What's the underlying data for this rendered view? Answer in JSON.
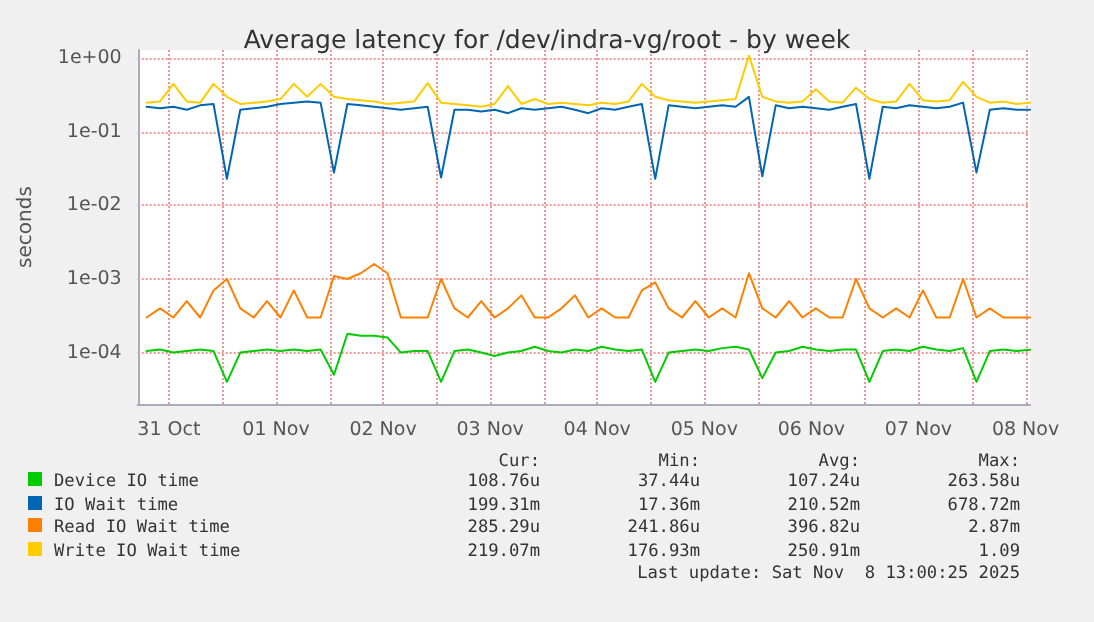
{
  "chart_data": {
    "type": "line",
    "title": "Average latency for /dev/indra-vg/root - by week",
    "ylabel": "seconds",
    "log": "y",
    "grid": true,
    "legend": "bottom",
    "marker": "none",
    "line_style": "solid",
    "xlim": [
      "2025-10-31T05:00",
      "2025-11-08T13:00"
    ],
    "xticks": [
      {
        "value": "2025-10-31T12:00",
        "label": "31 Oct"
      },
      {
        "value": "2025-11-01T00:00",
        "label": null
      },
      {
        "value": "2025-11-01T12:00",
        "label": "01 Nov"
      },
      {
        "value": "2025-11-02T00:00",
        "label": null
      },
      {
        "value": "2025-11-02T12:00",
        "label": "02 Nov"
      },
      {
        "value": "2025-11-03T00:00",
        "label": null
      },
      {
        "value": "2025-11-03T12:00",
        "label": "03 Nov"
      },
      {
        "value": "2025-11-04T00:00",
        "label": null
      },
      {
        "value": "2025-11-04T12:00",
        "label": "04 Nov"
      },
      {
        "value": "2025-11-05T00:00",
        "label": null
      },
      {
        "value": "2025-11-05T12:00",
        "label": "05 Nov"
      },
      {
        "value": "2025-11-06T00:00",
        "label": null
      },
      {
        "value": "2025-11-06T12:00",
        "label": "06 Nov"
      },
      {
        "value": "2025-11-07T00:00",
        "label": null
      },
      {
        "value": "2025-11-07T12:00",
        "label": "07 Nov"
      },
      {
        "value": "2025-11-08T00:00",
        "label": null
      },
      {
        "value": "2025-11-08T12:00",
        "label": "08 Nov"
      }
    ],
    "ylim": [
      2e-05,
      1.3
    ],
    "yticks": [
      {
        "value": 1,
        "label": "1e+00"
      },
      {
        "value": 0.1,
        "label": "1e-01"
      },
      {
        "value": 0.01,
        "label": "1e-02"
      },
      {
        "value": 0.001,
        "label": "1e-03"
      },
      {
        "value": 0.0001,
        "label": "1e-04"
      }
    ],
    "x": [
      "2025-10-31T07:00",
      "2025-10-31T10:00",
      "2025-10-31T13:00",
      "2025-10-31T16:00",
      "2025-10-31T19:00",
      "2025-10-31T22:00",
      "2025-11-01T01:00",
      "2025-11-01T04:00",
      "2025-11-01T07:00",
      "2025-11-01T10:00",
      "2025-11-01T13:00",
      "2025-11-01T16:00",
      "2025-11-01T19:00",
      "2025-11-01T22:00",
      "2025-11-02T01:00",
      "2025-11-02T04:00",
      "2025-11-02T07:00",
      "2025-11-02T10:00",
      "2025-11-02T13:00",
      "2025-11-02T16:00",
      "2025-11-02T19:00",
      "2025-11-02T22:00",
      "2025-11-03T01:00",
      "2025-11-03T04:00",
      "2025-11-03T07:00",
      "2025-11-03T10:00",
      "2025-11-03T13:00",
      "2025-11-03T16:00",
      "2025-11-03T19:00",
      "2025-11-03T22:00",
      "2025-11-04T01:00",
      "2025-11-04T04:00",
      "2025-11-04T07:00",
      "2025-11-04T10:00",
      "2025-11-04T13:00",
      "2025-11-04T16:00",
      "2025-11-04T19:00",
      "2025-11-04T22:00",
      "2025-11-05T01:00",
      "2025-11-05T04:00",
      "2025-11-05T07:00",
      "2025-11-05T10:00",
      "2025-11-05T13:00",
      "2025-11-05T16:00",
      "2025-11-05T19:00",
      "2025-11-05T22:00",
      "2025-11-06T01:00",
      "2025-11-06T04:00",
      "2025-11-06T07:00",
      "2025-11-06T10:00",
      "2025-11-06T13:00",
      "2025-11-06T16:00",
      "2025-11-06T19:00",
      "2025-11-06T22:00",
      "2025-11-07T01:00",
      "2025-11-07T04:00",
      "2025-11-07T07:00",
      "2025-11-07T10:00",
      "2025-11-07T13:00",
      "2025-11-07T16:00",
      "2025-11-07T19:00",
      "2025-11-07T22:00",
      "2025-11-08T01:00",
      "2025-11-08T04:00",
      "2025-11-08T07:00",
      "2025-11-08T10:00",
      "2025-11-08T13:00"
    ],
    "series": [
      {
        "name": "Device IO time",
        "color": "#00cc00",
        "values": [
          0.000105,
          0.00011,
          0.0001,
          0.000105,
          0.00011,
          0.000105,
          4e-05,
          0.0001,
          0.000105,
          0.00011,
          0.000105,
          0.00011,
          0.000105,
          0.00011,
          5e-05,
          0.00018,
          0.00017,
          0.00017,
          0.00016,
          0.0001,
          0.000105,
          0.000105,
          4e-05,
          0.000105,
          0.00011,
          0.0001,
          9e-05,
          0.0001,
          0.000105,
          0.00012,
          0.000105,
          0.0001,
          0.00011,
          0.000105,
          0.00012,
          0.00011,
          0.000105,
          0.00011,
          4e-05,
          0.0001,
          0.000105,
          0.00011,
          0.000105,
          0.000115,
          0.00012,
          0.00011,
          4.5e-05,
          0.0001,
          0.000105,
          0.00012,
          0.00011,
          0.000105,
          0.00011,
          0.00011,
          4e-05,
          0.000105,
          0.00011,
          0.000105,
          0.00012,
          0.00011,
          0.000105,
          0.000115,
          4e-05,
          0.000105,
          0.00011,
          0.000105,
          0.000109
        ]
      },
      {
        "name": "IO Wait time",
        "color": "#0066b3",
        "values": [
          0.22,
          0.21,
          0.22,
          0.2,
          0.23,
          0.24,
          0.023,
          0.2,
          0.21,
          0.22,
          0.24,
          0.25,
          0.26,
          0.25,
          0.028,
          0.24,
          0.23,
          0.22,
          0.21,
          0.2,
          0.21,
          0.22,
          0.024,
          0.2,
          0.2,
          0.19,
          0.2,
          0.18,
          0.21,
          0.2,
          0.21,
          0.22,
          0.2,
          0.18,
          0.21,
          0.2,
          0.22,
          0.24,
          0.023,
          0.23,
          0.22,
          0.21,
          0.22,
          0.23,
          0.22,
          0.3,
          0.025,
          0.23,
          0.21,
          0.22,
          0.21,
          0.2,
          0.22,
          0.24,
          0.023,
          0.22,
          0.21,
          0.23,
          0.22,
          0.21,
          0.22,
          0.25,
          0.028,
          0.2,
          0.21,
          0.2,
          0.2
        ]
      },
      {
        "name": "Read IO Wait time",
        "color": "#ff8000",
        "values": [
          0.0003,
          0.0004,
          0.0003,
          0.0005,
          0.0003,
          0.0007,
          0.001,
          0.0004,
          0.0003,
          0.0005,
          0.0003,
          0.0007,
          0.0003,
          0.0003,
          0.0011,
          0.001,
          0.0012,
          0.0016,
          0.0012,
          0.0003,
          0.0003,
          0.0003,
          0.001,
          0.0004,
          0.0003,
          0.0005,
          0.0003,
          0.0004,
          0.0006,
          0.0003,
          0.0003,
          0.0004,
          0.0006,
          0.0003,
          0.0004,
          0.0003,
          0.0003,
          0.0007,
          0.0009,
          0.0004,
          0.0003,
          0.0005,
          0.0003,
          0.0004,
          0.0003,
          0.0012,
          0.0004,
          0.0003,
          0.0005,
          0.0003,
          0.0004,
          0.0003,
          0.0003,
          0.001,
          0.0004,
          0.0003,
          0.0004,
          0.0003,
          0.0007,
          0.0003,
          0.0003,
          0.001,
          0.0003,
          0.0004,
          0.0003,
          0.0003,
          0.0003
        ]
      },
      {
        "name": "Write IO Wait time",
        "color": "#ffcc00",
        "values": [
          0.25,
          0.26,
          0.45,
          0.26,
          0.25,
          0.45,
          0.3,
          0.24,
          0.25,
          0.26,
          0.28,
          0.45,
          0.3,
          0.45,
          0.3,
          0.28,
          0.27,
          0.26,
          0.24,
          0.25,
          0.26,
          0.46,
          0.25,
          0.24,
          0.23,
          0.22,
          0.24,
          0.42,
          0.24,
          0.28,
          0.24,
          0.25,
          0.24,
          0.23,
          0.25,
          0.24,
          0.26,
          0.45,
          0.3,
          0.27,
          0.26,
          0.25,
          0.26,
          0.27,
          0.28,
          1.09,
          0.3,
          0.26,
          0.25,
          0.26,
          0.38,
          0.26,
          0.25,
          0.4,
          0.28,
          0.25,
          0.26,
          0.45,
          0.27,
          0.26,
          0.27,
          0.48,
          0.3,
          0.25,
          0.26,
          0.24,
          0.25
        ]
      }
    ],
    "annotations": [
      "Cur:",
      "Min:",
      "Avg:",
      "Max:",
      "108.76u",
      "37.44u",
      "107.24u",
      "263.58u",
      "199.31m",
      "17.36m",
      "210.52m",
      "678.72m",
      "285.29u",
      "241.86u",
      "396.82u",
      "2.87m",
      "219.07m",
      "176.93m",
      "250.91m",
      "1.09",
      "Last update: Sat Nov  8 13:00:25 2025"
    ]
  }
}
